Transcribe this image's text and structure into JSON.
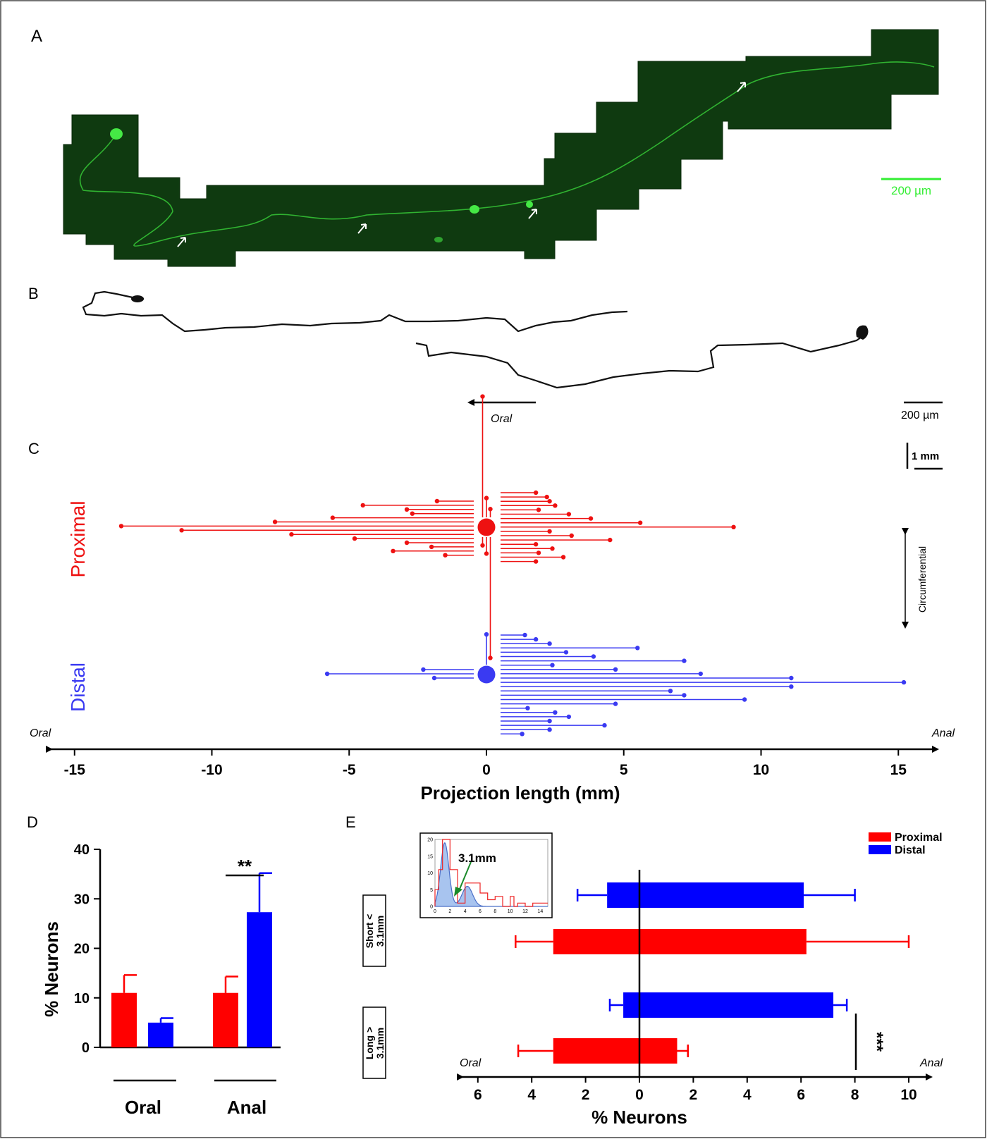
{
  "panels": {
    "A": {
      "label": "A",
      "scale_bar": "200 µm",
      "colors": {
        "tissue_bg": "#0f3a10",
        "fluor": "#3cdc3c",
        "scale": "#33ee33"
      }
    },
    "B": {
      "label": "B",
      "scale_bar": "200 µm",
      "direction_label": "Oral"
    },
    "C": {
      "label": "C",
      "scale_bar": "1 mm",
      "row_labels": [
        "Proximal",
        "Distal"
      ],
      "circ_label": "Circumferential",
      "left_end_label": "Oral",
      "right_end_label": "Anal",
      "xlabel": "Projection length (mm)",
      "ticks": [
        -15,
        -10,
        -5,
        0,
        5,
        10,
        15
      ],
      "colors": {
        "proximal": "#ee1111",
        "distal": "#3a3af2"
      }
    },
    "D": {
      "label": "D",
      "ylabel": "% Neurons",
      "yticks": [
        0,
        10,
        20,
        30,
        40
      ],
      "group_labels": [
        "Oral",
        "Anal"
      ],
      "significance": "**"
    },
    "E": {
      "label": "E",
      "legend": [
        "Proximal",
        "Distal"
      ],
      "categories": [
        "Short < 3.1mm",
        "Long > 3.1mm"
      ],
      "left_end_label": "Oral",
      "right_end_label": "Anal",
      "xlabel": "% Neurons",
      "ticks": [
        "6",
        "4",
        "2",
        "0",
        "2",
        "4",
        "6",
        "8",
        "10"
      ],
      "significance": "***",
      "inset_annotation": "3.1mm",
      "inset_xticks": [
        "0",
        "2",
        "4",
        "6",
        "8",
        "10",
        "12",
        "14"
      ],
      "inset_yticks": [
        "0",
        "5",
        "10",
        "15",
        "20"
      ]
    }
  },
  "chart_data": [
    {
      "type": "scatter",
      "panel": "C",
      "xlabel": "Projection length (mm)",
      "xlim": [
        -15,
        15
      ],
      "series": [
        {
          "name": "Proximal",
          "circumferential_up": [
            4.3,
            0.6,
            0.2
          ],
          "circumferential_down": [
            0.2,
            0.5,
            4.3
          ],
          "oral": [
            -1.8,
            -4.5,
            -2.9,
            -2.7,
            -5.6,
            -7.7,
            -13.3,
            -11.1,
            -7.1,
            -4.8,
            -2.9,
            -2.0,
            -3.4,
            -1.5
          ],
          "anal": [
            1.8,
            2.2,
            2.3,
            2.5,
            1.9,
            3.0,
            3.8,
            5.6,
            9.0,
            2.3,
            3.1,
            4.5,
            1.8,
            2.4,
            1.9,
            2.8,
            1.8
          ]
        },
        {
          "name": "Distal",
          "circumferential_up": [
            1.0
          ],
          "oral": [
            -2.3,
            -5.8,
            -1.9
          ],
          "anal": [
            1.4,
            1.8,
            2.3,
            5.5,
            2.9,
            3.9,
            7.2,
            2.4,
            4.7,
            7.8,
            11.1,
            15.2,
            11.1,
            6.7,
            7.2,
            9.4,
            4.7,
            1.5,
            2.5,
            3.0,
            2.3,
            4.3,
            2.3,
            1.3
          ]
        }
      ]
    },
    {
      "type": "bar",
      "panel": "D",
      "categories": [
        "Oral",
        "Anal"
      ],
      "ylabel": "% Neurons",
      "ylim": [
        0,
        40
      ],
      "series": [
        {
          "name": "Proximal",
          "values": [
            11.0,
            11.0
          ],
          "errors": [
            3.6,
            3.3
          ]
        },
        {
          "name": "Distal",
          "values": [
            5.0,
            27.3
          ],
          "errors": [
            0.9,
            7.9
          ]
        }
      ]
    },
    {
      "type": "bar",
      "panel": "E",
      "orientation": "horizontal",
      "categories": [
        "Short < 3.1mm",
        "Long > 3.1mm"
      ],
      "xlabel": "% Neurons",
      "xlim": [
        -6,
        10
      ],
      "series": [
        {
          "name": "Distal",
          "oral": [
            1.2,
            0.6
          ],
          "oral_err": [
            1.1,
            0.5
          ],
          "anal": [
            6.1,
            7.2
          ],
          "anal_err": [
            1.9,
            0.5
          ]
        },
        {
          "name": "Proximal",
          "oral": [
            3.2,
            3.2
          ],
          "oral_err": [
            1.4,
            1.3
          ],
          "anal": [
            6.2,
            1.4
          ],
          "anal_err": [
            3.8,
            0.4
          ]
        }
      ]
    },
    {
      "type": "area",
      "panel": "E-inset",
      "xlim": [
        0,
        15
      ],
      "ylim": [
        0,
        20
      ],
      "series": [
        {
          "name": "histogram",
          "x": [
            0,
            0.5,
            1,
            1.5,
            2,
            2.5,
            3,
            3.5,
            4,
            5,
            6,
            7,
            8,
            9,
            10,
            10.5,
            11,
            12,
            13,
            14,
            15
          ],
          "values": [
            5,
            11,
            20,
            20,
            11,
            11,
            1,
            1,
            7,
            7,
            4,
            2,
            3,
            0,
            3,
            0,
            1,
            0,
            1,
            1,
            1
          ]
        },
        {
          "name": "fit",
          "peaks": [
            {
              "mu": 1.3,
              "sigma": 0.55,
              "amp": 19
            },
            {
              "mu": 4.3,
              "sigma": 0.7,
              "amp": 6
            }
          ]
        }
      ],
      "annotation": "3.1mm"
    }
  ]
}
